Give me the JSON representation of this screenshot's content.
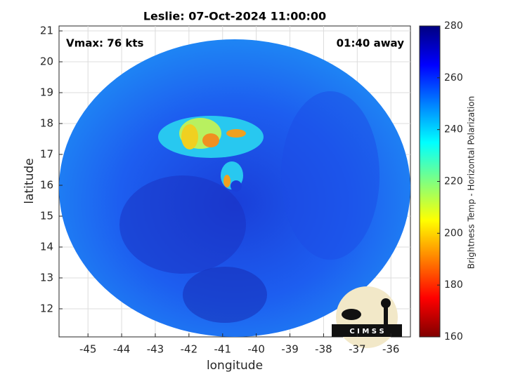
{
  "chart_data": {
    "type": "image",
    "title": "Leslie: 07-Oct-2024 11:00:00",
    "x_label": "longitude",
    "y_label": "latitude",
    "annotations": [
      "Vmax: 76 kts",
      "01:40 away"
    ],
    "xlim": [
      -45.86,
      -35.42
    ],
    "xticks": [
      -45,
      -44,
      -43,
      -42,
      -41,
      -40,
      -39,
      -38,
      -37,
      -36
    ],
    "ylim": [
      11.09,
      21.16
    ],
    "yticks": [
      12,
      13,
      14,
      15,
      16,
      17,
      18,
      19,
      20,
      21
    ],
    "grid": true,
    "colorbar": {
      "label": "Brightness Temp - Horizontal Polarization",
      "lim": [
        160,
        280
      ],
      "ticks": [
        160,
        180,
        200,
        220,
        240,
        260,
        280
      ],
      "colormap": "jet"
    },
    "logo_text": "C I M S S"
  }
}
